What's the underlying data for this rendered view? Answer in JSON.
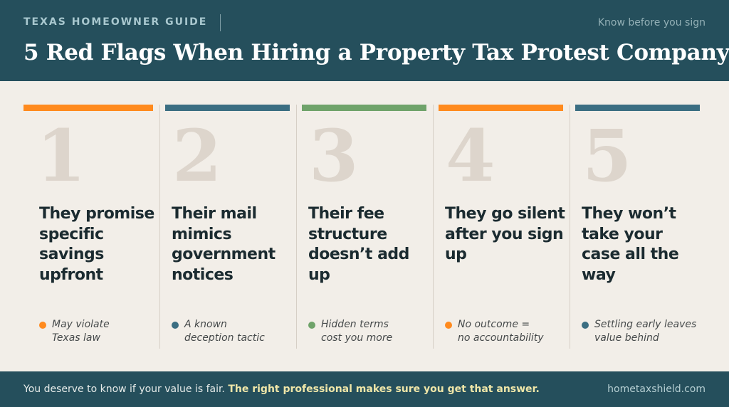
{
  "header": {
    "kicker": "TEXAS HOMEOWNER GUIDE",
    "tagline": "Know before you sign",
    "title": "5 Red Flags When Hiring a Property Tax Protest Company"
  },
  "colors": {
    "header_bg": "#254f5c",
    "orange": "#ff8a1e",
    "teal": "#3b6e82",
    "green": "#6fa36a",
    "number": "#ddd5cc"
  },
  "flags": [
    {
      "number": "1",
      "accent": "#ff8a1e",
      "heading": "They promise specific savings upfront",
      "note": "May violate\nTexas law"
    },
    {
      "number": "2",
      "accent": "#3b6e82",
      "heading": "Their mail mimics government notices",
      "note": "A known\ndeception tactic"
    },
    {
      "number": "3",
      "accent": "#6fa36a",
      "heading": "Their fee structure doesn’t add up",
      "note": "Hidden terms\ncost you more"
    },
    {
      "number": "4",
      "accent": "#ff8a1e",
      "heading": "They go silent after you sign up",
      "note": "No outcome =\nno accountability"
    },
    {
      "number": "5",
      "accent": "#3b6e82",
      "heading": "They won’t take your case all the way",
      "note": "Settling early leaves\nvalue behind"
    }
  ],
  "footer": {
    "message": "You deserve to know if your value is fair. ",
    "message_strong": "The right professional makes sure you get that answer.",
    "site": "hometaxshield.com"
  }
}
